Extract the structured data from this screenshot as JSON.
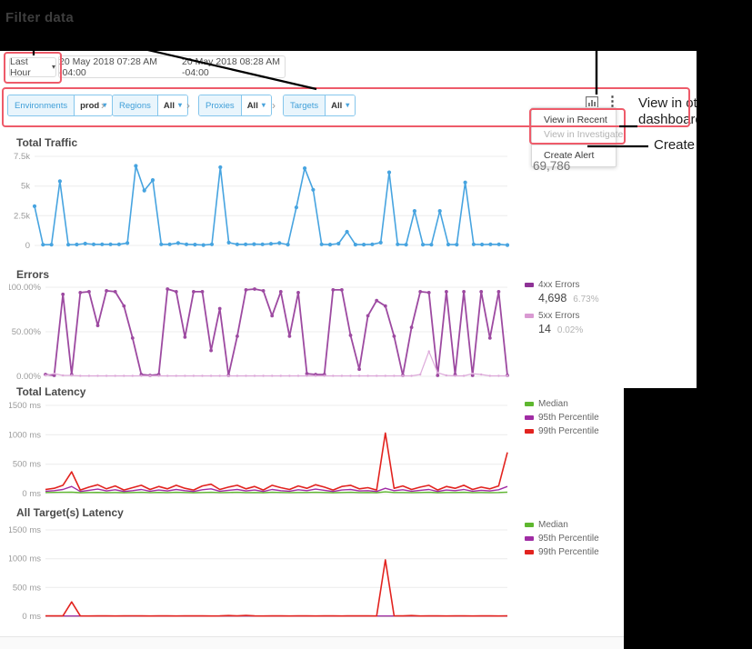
{
  "annotations": {
    "filter_data": "Filter data",
    "callout_view_line1": "View in oth",
    "callout_view_line2": "dashboard",
    "callout_create": "Create a"
  },
  "colors": {
    "annotation_red": "#ee5b6a",
    "traffic_blue": "#47a4e0",
    "errors_4xx": "#9d4aa1",
    "errors_5xx": "#ddaada",
    "median_green": "#5eb72f",
    "p95_purple": "#a02ca4",
    "p99_red": "#e2231f"
  },
  "icons": {
    "caret_down": "▾",
    "chevron_sep": "›",
    "kebab": "⋮"
  },
  "header": {
    "time_range": "Last Hour",
    "start_date": "20 May 2018 07:28 AM -04:00",
    "end_date": "20 May 2018 08:28 AM -04:00"
  },
  "filters": [
    {
      "label": "Environments",
      "value": "prod"
    },
    {
      "label": "Regions",
      "value": "All"
    },
    {
      "label": "Proxies",
      "value": "All"
    },
    {
      "label": "Targets",
      "value": "All"
    }
  ],
  "menu": {
    "item_recent": "View in Recent",
    "item_investigate": "View in Investigate",
    "item_create_alert": "Create Alert"
  },
  "traffic_total": "69,786",
  "chart_data": [
    {
      "type": "line",
      "title": "Total Traffic",
      "ylim": [
        0,
        7500
      ],
      "y_ticks": [
        {
          "label": "7.5k",
          "v": 7500
        },
        {
          "label": "5k",
          "v": 5000
        },
        {
          "label": "2.5k",
          "v": 2500
        },
        {
          "label": "0",
          "v": 0
        }
      ],
      "series": [
        {
          "name": "Traffic",
          "color": "#47a4e0",
          "markers": true,
          "marker_r": 2.1,
          "width": 1.6,
          "values": [
            3300,
            60,
            60,
            5400,
            60,
            80,
            150,
            90,
            90,
            90,
            90,
            200,
            6700,
            4620,
            5500,
            90,
            90,
            200,
            90,
            70,
            30,
            90,
            6580,
            240,
            90,
            90,
            110,
            90,
            140,
            200,
            70,
            3200,
            6500,
            4680,
            90,
            70,
            150,
            1150,
            70,
            70,
            90,
            240,
            6150,
            90,
            60,
            2900,
            70,
            60,
            2900,
            80,
            70,
            5300,
            90,
            80,
            90,
            90,
            30
          ]
        }
      ]
    },
    {
      "type": "line",
      "title": "Errors",
      "ylim": [
        0,
        100
      ],
      "y_ticks": [
        {
          "label": "100.00%",
          "v": 100
        },
        {
          "label": "50.00%",
          "v": 50
        },
        {
          "label": "0.00%",
          "v": 0
        }
      ],
      "series": [
        {
          "name": "4xx Errors",
          "color": "#9d4aa1",
          "swatch": "#8e3296",
          "markers": true,
          "marker_r": 1.9,
          "width": 1.8,
          "stat_value": "4,698",
          "stat_pct": "6.73%",
          "values": [
            2,
            1,
            92,
            2,
            94,
            95,
            57,
            96,
            95,
            79,
            43,
            2,
            1,
            2,
            98,
            95,
            44,
            95,
            95,
            29,
            76,
            1,
            45,
            97,
            98,
            96,
            68,
            95,
            45,
            94,
            3,
            2,
            2,
            97,
            97,
            46,
            8,
            68,
            85,
            79,
            45,
            1,
            55,
            95,
            94,
            1,
            95,
            2,
            95,
            1,
            95,
            43,
            95,
            1
          ]
        },
        {
          "name": "5xx Errors",
          "color": "#ddaada",
          "swatch": "#d99ad2",
          "markers": true,
          "marker_r": 1.2,
          "width": 1.2,
          "stat_value": "14",
          "stat_pct": "0.02%",
          "values": [
            1,
            3,
            1,
            1,
            0.5,
            0.5,
            0.5,
            0.5,
            0.5,
            0.5,
            0.5,
            0.5,
            0.5,
            0.5,
            0.5,
            0.5,
            0.5,
            0.5,
            0.5,
            0.5,
            0.5,
            0.5,
            0.5,
            0.5,
            0.5,
            0.5,
            0.5,
            0.5,
            0.5,
            0.5,
            0.5,
            0.5,
            0.5,
            0.5,
            0.5,
            0.5,
            0.5,
            0.5,
            0.5,
            0.5,
            0.5,
            0.5,
            0.5,
            2,
            28,
            4,
            1,
            0.5,
            0.5,
            3,
            2,
            0.5,
            0.5,
            0.5
          ]
        }
      ]
    },
    {
      "type": "line",
      "title": "Total Latency",
      "ylim": [
        0,
        1500
      ],
      "y_ticks": [
        {
          "label": "1500 ms",
          "v": 1500
        },
        {
          "label": "1000 ms",
          "v": 1000
        },
        {
          "label": "500 ms",
          "v": 500
        },
        {
          "label": "0 ms",
          "v": 0
        }
      ],
      "series": [
        {
          "name": "Median",
          "color": "#5eb72f",
          "markers": false,
          "width": 1.4,
          "values": [
            18,
            20,
            22,
            25,
            16,
            18,
            20,
            17,
            19,
            16,
            18,
            21,
            17,
            20,
            17,
            21,
            18,
            16,
            19,
            22,
            17,
            18,
            21,
            17,
            19,
            16,
            21,
            18,
            17,
            19,
            18,
            22,
            19,
            16,
            19,
            21,
            17,
            18,
            16,
            30,
            18,
            19,
            17,
            18,
            21,
            16,
            19,
            18,
            21,
            17,
            18,
            17,
            19,
            25
          ]
        },
        {
          "name": "95th Percentile",
          "color": "#a02ca4",
          "markers": false,
          "width": 1.4,
          "values": [
            40,
            50,
            70,
            120,
            35,
            55,
            75,
            45,
            65,
            35,
            50,
            70,
            40,
            60,
            45,
            70,
            50,
            35,
            65,
            80,
            40,
            55,
            70,
            45,
            60,
            35,
            70,
            50,
            40,
            65,
            50,
            75,
            55,
            35,
            60,
            70,
            45,
            50,
            35,
            90,
            50,
            65,
            40,
            55,
            70,
            35,
            60,
            50,
            70,
            40,
            55,
            45,
            65,
            120
          ]
        },
        {
          "name": "99th Percentile",
          "color": "#e2231f",
          "markers": false,
          "width": 1.6,
          "values": [
            70,
            90,
            140,
            370,
            60,
            110,
            150,
            80,
            130,
            60,
            100,
            140,
            70,
            120,
            80,
            140,
            90,
            60,
            130,
            160,
            70,
            110,
            140,
            80,
            120,
            60,
            140,
            100,
            70,
            130,
            90,
            150,
            110,
            60,
            120,
            140,
            80,
            100,
            60,
            1030,
            90,
            130,
            70,
            110,
            140,
            60,
            120,
            90,
            140,
            70,
            110,
            80,
            130,
            700
          ]
        }
      ]
    },
    {
      "type": "line",
      "title": "All Target(s) Latency",
      "ylim": [
        0,
        1500
      ],
      "y_ticks": [
        {
          "label": "1500 ms",
          "v": 1500
        },
        {
          "label": "1000 ms",
          "v": 1000
        },
        {
          "label": "500 ms",
          "v": 500
        },
        {
          "label": "0 ms",
          "v": 0
        }
      ],
      "series": [
        {
          "name": "Median",
          "color": "#5eb72f",
          "markers": false,
          "width": 1.4,
          "values": [
            3,
            3,
            3,
            3,
            3,
            3,
            3,
            3,
            3,
            3,
            3,
            3,
            3,
            3,
            3,
            3,
            3,
            3,
            3,
            3,
            3,
            3,
            3,
            3,
            3,
            3,
            3,
            3,
            3,
            3,
            3,
            3,
            3,
            3,
            3,
            3,
            3,
            3,
            3,
            3,
            3,
            3,
            3,
            3,
            3,
            3,
            3,
            3,
            3,
            3,
            3,
            3,
            3,
            3
          ]
        },
        {
          "name": "95th Percentile",
          "color": "#a02ca4",
          "markers": false,
          "width": 1.4,
          "values": [
            4,
            4,
            4,
            4,
            4,
            4,
            4,
            4,
            4,
            4,
            4,
            4,
            4,
            4,
            4,
            4,
            4,
            4,
            4,
            4,
            4,
            4,
            4,
            4,
            4,
            4,
            4,
            4,
            4,
            4,
            4,
            4,
            4,
            4,
            4,
            4,
            4,
            4,
            4,
            4,
            4,
            4,
            4,
            4,
            4,
            4,
            4,
            4,
            4,
            4,
            4,
            4,
            4,
            4
          ]
        },
        {
          "name": "99th Percentile",
          "color": "#e2231f",
          "markers": false,
          "width": 1.6,
          "values": [
            8,
            6,
            7,
            250,
            6,
            5,
            6,
            7,
            5,
            6,
            8,
            6,
            5,
            7,
            6,
            5,
            8,
            6,
            7,
            5,
            6,
            12,
            6,
            15,
            6,
            5,
            7,
            6,
            5,
            8,
            6,
            5,
            7,
            6,
            5,
            8,
            6,
            7,
            5,
            980,
            8,
            6,
            12,
            5,
            6,
            7,
            5,
            6,
            8,
            5,
            7,
            6,
            5,
            8
          ]
        }
      ]
    }
  ]
}
